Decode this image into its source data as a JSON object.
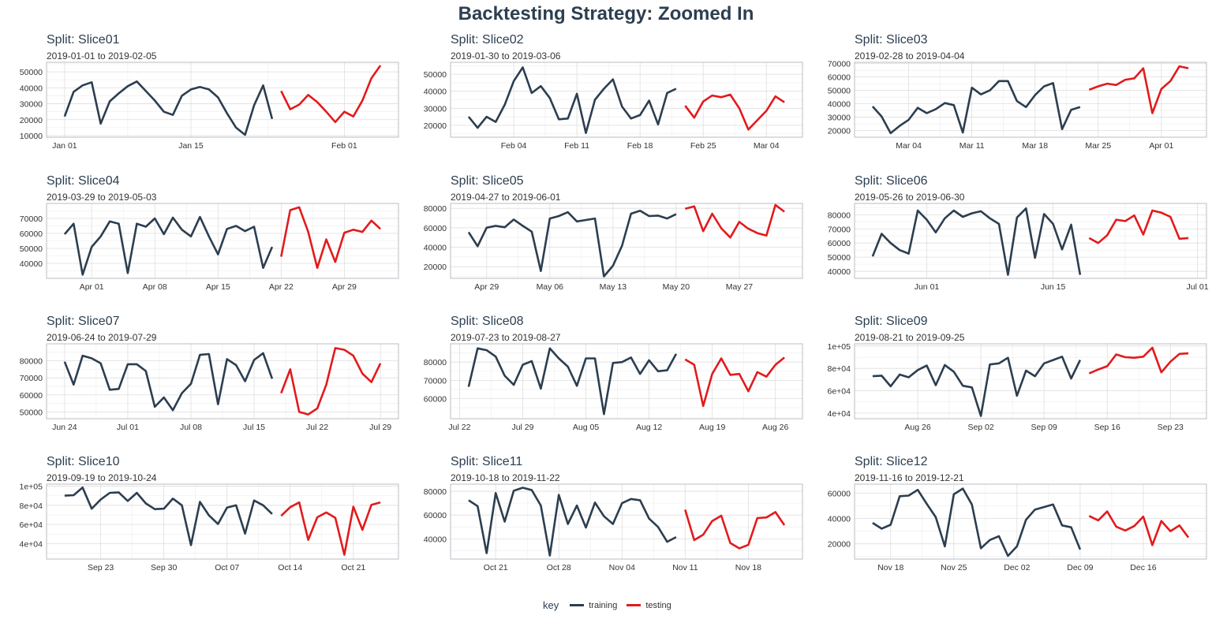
{
  "title": "Backtesting Strategy: Zoomed In",
  "colors": {
    "training": "#2c3e50",
    "testing": "#e31a1c"
  },
  "legend": {
    "title": "key",
    "items": [
      {
        "label": "training",
        "color": "#2c3e50"
      },
      {
        "label": "testing",
        "color": "#e31a1c"
      }
    ]
  },
  "chart_data": [
    {
      "type": "line",
      "title": "Split: Slice01",
      "subtitle": "2019-01-01 to 2019-02-05",
      "xlim": [
        "2018-12-30",
        "2019-02-07"
      ],
      "ylim": [
        9000,
        56000
      ],
      "yticks": [
        10000,
        20000,
        30000,
        40000,
        50000
      ],
      "ytick_labels": [
        "10000",
        "20000",
        "30000",
        "40000",
        "50000"
      ],
      "xticks": [
        "2019-01-01",
        "2019-01-15",
        "2019-02-01"
      ],
      "xtick_labels": [
        "Jan 01",
        "Jan 15",
        "Feb 01"
      ],
      "series": [
        {
          "name": "training",
          "start": "2019-01-01",
          "values": [
            22000,
            37500,
            41500,
            43500,
            17500,
            31500,
            36500,
            41000,
            44000,
            38000,
            32000,
            25000,
            23000,
            35000,
            39000,
            40500,
            39000,
            34000,
            24000,
            15000,
            10500,
            29000,
            41500,
            20500
          ]
        },
        {
          "name": "testing",
          "start": "2019-01-25",
          "values": [
            38000,
            26500,
            29500,
            35500,
            31000,
            25000,
            18500,
            25000,
            22000,
            32000,
            46000,
            54000
          ]
        }
      ]
    },
    {
      "type": "line",
      "title": "Split: Slice02",
      "subtitle": "2019-01-30 to 2019-03-06",
      "xlim": [
        "2019-01-28",
        "2019-03-08"
      ],
      "ylim": [
        13000,
        57000
      ],
      "yticks": [
        20000,
        30000,
        40000,
        50000
      ],
      "ytick_labels": [
        "20000",
        "30000",
        "40000",
        "50000"
      ],
      "xticks": [
        "2019-02-04",
        "2019-02-11",
        "2019-02-18",
        "2019-02-25",
        "2019-03-04"
      ],
      "xtick_labels": [
        "Feb 04",
        "Feb 11",
        "Feb 18",
        "Feb 25",
        "Mar 04"
      ],
      "series": [
        {
          "name": "training",
          "start": "2019-01-30",
          "values": [
            25000,
            18500,
            25000,
            22000,
            32000,
            46000,
            54000,
            39000,
            43000,
            36000,
            23500,
            24000,
            38500,
            15500,
            35000,
            41500,
            47000,
            31000,
            24000,
            26000,
            34500,
            20500,
            39000,
            41500
          ]
        },
        {
          "name": "testing",
          "start": "2019-02-23",
          "values": [
            31500,
            24500,
            34000,
            37500,
            36500,
            38000,
            30000,
            17500,
            23000,
            28500,
            37000,
            33500
          ]
        }
      ]
    },
    {
      "type": "line",
      "title": "Split: Slice03",
      "subtitle": "2019-02-28 to 2019-04-04",
      "xlim": [
        "2019-02-26",
        "2019-04-06"
      ],
      "ylim": [
        15000,
        71000
      ],
      "yticks": [
        20000,
        30000,
        40000,
        50000,
        60000,
        70000
      ],
      "ytick_labels": [
        "20000",
        "30000",
        "40000",
        "50000",
        "60000",
        "70000"
      ],
      "xticks": [
        "2019-03-04",
        "2019-03-11",
        "2019-03-18",
        "2019-03-25",
        "2019-04-01"
      ],
      "xtick_labels": [
        "Mar 04",
        "Mar 11",
        "Mar 18",
        "Mar 25",
        "Apr 01"
      ],
      "series": [
        {
          "name": "training",
          "start": "2019-02-28",
          "values": [
            38000,
            30500,
            18000,
            23500,
            28000,
            37000,
            33000,
            36000,
            40500,
            39000,
            18500,
            52000,
            47000,
            50000,
            57000,
            57000,
            42000,
            37500,
            46500,
            53000,
            55500,
            21000,
            35500,
            37500
          ]
        },
        {
          "name": "testing",
          "start": "2019-03-24",
          "values": [
            50500,
            53000,
            55000,
            54000,
            58000,
            59000,
            66500,
            33000,
            51000,
            57000,
            68000,
            66500
          ]
        }
      ]
    },
    {
      "type": "line",
      "title": "Split: Slice04",
      "subtitle": "2019-03-29 to 2019-05-03",
      "xlim": [
        "2019-03-27",
        "2019-05-05"
      ],
      "ylim": [
        30000,
        80000
      ],
      "yticks": [
        40000,
        50000,
        60000,
        70000
      ],
      "ytick_labels": [
        "40000",
        "50000",
        "60000",
        "70000"
      ],
      "xticks": [
        "2019-04-01",
        "2019-04-08",
        "2019-04-15",
        "2019-04-22",
        "2019-04-29"
      ],
      "xtick_labels": [
        "Apr 01",
        "Apr 08",
        "Apr 15",
        "Apr 22",
        "Apr 29"
      ],
      "series": [
        {
          "name": "training",
          "start": "2019-03-29",
          "values": [
            59500,
            66500,
            32500,
            51000,
            58000,
            68000,
            66500,
            33500,
            66500,
            64500,
            70000,
            59500,
            70500,
            62500,
            58000,
            71000,
            58000,
            46000,
            63000,
            65000,
            61500,
            64500,
            37000,
            51000
          ]
        },
        {
          "name": "testing",
          "start": "2019-04-22",
          "values": [
            44500,
            75500,
            77500,
            61000,
            37000,
            56000,
            41000,
            60500,
            62500,
            61000,
            68500,
            63000
          ]
        }
      ]
    },
    {
      "type": "line",
      "title": "Split: Slice05",
      "subtitle": "2019-04-27 to 2019-06-01",
      "xlim": [
        "2019-04-25",
        "2019-06-03"
      ],
      "ylim": [
        8000,
        85000
      ],
      "yticks": [
        20000,
        40000,
        60000,
        80000
      ],
      "ytick_labels": [
        "20000",
        "40000",
        "60000",
        "80000"
      ],
      "xticks": [
        "2019-04-29",
        "2019-05-06",
        "2019-05-13",
        "2019-05-20",
        "2019-05-27"
      ],
      "xtick_labels": [
        "Apr 29",
        "May 06",
        "May 13",
        "May 20",
        "May 27"
      ],
      "series": [
        {
          "name": "training",
          "start": "2019-04-27",
          "values": [
            55500,
            41000,
            60000,
            62000,
            60500,
            68500,
            62000,
            56000,
            15500,
            69500,
            72000,
            76000,
            66500,
            68000,
            69500,
            10000,
            21000,
            41500,
            74500,
            77500,
            72000,
            72500,
            69500,
            74000
          ]
        },
        {
          "name": "testing",
          "start": "2019-05-21",
          "values": [
            79500,
            82000,
            56500,
            74500,
            59500,
            50000,
            66000,
            59000,
            54500,
            52000,
            83500,
            76500
          ]
        }
      ]
    },
    {
      "type": "line",
      "title": "Split: Slice06",
      "subtitle": "2019-05-26 to 2019-06-30",
      "xlim": [
        "2019-05-24",
        "2019-07-02"
      ],
      "ylim": [
        35000,
        88000
      ],
      "yticks": [
        40000,
        50000,
        60000,
        70000,
        80000
      ],
      "ytick_labels": [
        "40000",
        "50000",
        "60000",
        "70000",
        "80000"
      ],
      "xticks": [
        "2019-06-01",
        "2019-06-15",
        "2019-07-01"
      ],
      "xtick_labels": [
        "Jun 01",
        "Jun 15",
        "Jul 01"
      ],
      "series": [
        {
          "name": "training",
          "start": "2019-05-26",
          "values": [
            50500,
            66500,
            60000,
            55000,
            52500,
            83000,
            76500,
            67500,
            77500,
            83000,
            78500,
            81000,
            82500,
            77500,
            73500,
            37500,
            78000,
            84500,
            49500,
            80500,
            73500,
            55500,
            73000,
            37500
          ]
        },
        {
          "name": "testing",
          "start": "2019-06-19",
          "values": [
            63500,
            60000,
            65500,
            76500,
            75500,
            79500,
            66000,
            83000,
            81500,
            78500,
            63000,
            63500
          ]
        }
      ]
    },
    {
      "type": "line",
      "title": "Split: Slice07",
      "subtitle": "2019-06-24 to 2019-07-29",
      "xlim": [
        "2019-06-22",
        "2019-07-31"
      ],
      "ylim": [
        46000,
        90000
      ],
      "yticks": [
        50000,
        60000,
        70000,
        80000
      ],
      "ytick_labels": [
        "50000",
        "60000",
        "70000",
        "80000"
      ],
      "xticks": [
        "2019-06-24",
        "2019-07-01",
        "2019-07-08",
        "2019-07-15",
        "2019-07-22",
        "2019-07-29"
      ],
      "xtick_labels": [
        "Jun 24",
        "Jul 01",
        "Jul 08",
        "Jul 15",
        "Jul 22",
        "Jul 29"
      ],
      "series": [
        {
          "name": "training",
          "start": "2019-06-24",
          "values": [
            79500,
            66000,
            83000,
            81500,
            78500,
            63000,
            63500,
            78000,
            78000,
            74000,
            53000,
            58500,
            51000,
            61000,
            66500,
            83500,
            84000,
            54500,
            81000,
            77500,
            68000,
            80500,
            84500,
            69500
          ]
        },
        {
          "name": "testing",
          "start": "2019-07-18",
          "values": [
            61000,
            75000,
            50000,
            48500,
            52000,
            66000,
            87500,
            86500,
            83000,
            72500,
            67500,
            78500
          ]
        }
      ]
    },
    {
      "type": "line",
      "title": "Split: Slice08",
      "subtitle": "2019-07-23 to 2019-08-27",
      "xlim": [
        "2019-07-21",
        "2019-08-29"
      ],
      "ylim": [
        49000,
        90000
      ],
      "yticks": [
        60000,
        70000,
        80000
      ],
      "ytick_labels": [
        "60000",
        "70000",
        "80000"
      ],
      "xticks": [
        "2019-07-22",
        "2019-07-29",
        "2019-08-05",
        "2019-08-12",
        "2019-08-19",
        "2019-08-26"
      ],
      "xtick_labels": [
        "Jul 22",
        "Jul 29",
        "Aug 05",
        "Aug 12",
        "Aug 19",
        "Aug 26"
      ],
      "series": [
        {
          "name": "training",
          "start": "2019-07-23",
          "values": [
            66500,
            87500,
            86500,
            83000,
            72500,
            67500,
            78500,
            80500,
            65500,
            87500,
            82000,
            77500,
            67000,
            82000,
            82000,
            51500,
            79500,
            80000,
            82500,
            73500,
            81000,
            75000,
            75500,
            84500
          ]
        },
        {
          "name": "testing",
          "start": "2019-08-16",
          "values": [
            81500,
            78500,
            56000,
            73500,
            82000,
            73000,
            73500,
            64000,
            74500,
            72000,
            78500,
            82500
          ]
        }
      ]
    },
    {
      "type": "line",
      "title": "Split: Slice09",
      "subtitle": "2019-08-21 to 2019-09-25",
      "xlim": [
        "2019-08-19",
        "2019-09-27"
      ],
      "ylim": [
        35000,
        102000
      ],
      "yticks": [
        40000,
        60000,
        80000,
        100000
      ],
      "ytick_labels": [
        "4e+04",
        "6e+04",
        "8e+04",
        "1e+05"
      ],
      "xticks": [
        "2019-08-26",
        "2019-09-02",
        "2019-09-09",
        "2019-09-16",
        "2019-09-23"
      ],
      "xtick_labels": [
        "Aug 26",
        "Sep 02",
        "Sep 09",
        "Sep 16",
        "Sep 23"
      ],
      "series": [
        {
          "name": "training",
          "start": "2019-08-21",
          "values": [
            73000,
            73500,
            64000,
            74500,
            72000,
            78500,
            82500,
            65000,
            83000,
            77000,
            64500,
            63000,
            37500,
            83500,
            84500,
            89500,
            55500,
            78000,
            73000,
            84500,
            87500,
            90500,
            71000,
            87500
          ]
        },
        {
          "name": "testing",
          "start": "2019-09-14",
          "values": [
            75500,
            79000,
            82000,
            92500,
            90000,
            89500,
            90500,
            98500,
            76500,
            86000,
            93000,
            93500
          ]
        }
      ]
    },
    {
      "type": "line",
      "title": "Split: Slice10",
      "subtitle": "2019-09-19 to 2019-10-24",
      "xlim": [
        "2019-09-17",
        "2019-10-26"
      ],
      "ylim": [
        24000,
        102000
      ],
      "yticks": [
        40000,
        60000,
        80000,
        100000
      ],
      "ytick_labels": [
        "4e+04",
        "6e+04",
        "8e+04",
        "1e+05"
      ],
      "xticks": [
        "2019-09-23",
        "2019-09-30",
        "2019-10-07",
        "2019-10-14",
        "2019-10-21"
      ],
      "xtick_labels": [
        "Sep 23",
        "Sep 30",
        "Oct 07",
        "Oct 14",
        "Oct 21"
      ],
      "series": [
        {
          "name": "training",
          "start": "2019-09-19",
          "values": [
            90000,
            90500,
            98500,
            76500,
            86000,
            93000,
            93500,
            84500,
            93000,
            82000,
            76000,
            76500,
            87000,
            80000,
            38500,
            83500,
            69500,
            60500,
            77500,
            80000,
            50500,
            85000,
            80000,
            71000
          ]
        },
        {
          "name": "testing",
          "start": "2019-10-13",
          "values": [
            69000,
            78000,
            83000,
            44000,
            67500,
            72500,
            67000,
            28500,
            78500,
            54500,
            80500,
            83000
          ]
        }
      ]
    },
    {
      "type": "line",
      "title": "Split: Slice11",
      "subtitle": "2019-10-18 to 2019-11-22",
      "xlim": [
        "2019-10-16",
        "2019-11-24"
      ],
      "ylim": [
        23000,
        86000
      ],
      "yticks": [
        40000,
        60000,
        80000
      ],
      "ytick_labels": [
        "40000",
        "60000",
        "80000"
      ],
      "xticks": [
        "2019-10-21",
        "2019-10-28",
        "2019-11-04",
        "2019-11-11",
        "2019-11-18"
      ],
      "xtick_labels": [
        "Oct 21",
        "Oct 28",
        "Nov 04",
        "Nov 11",
        "Nov 18"
      ],
      "series": [
        {
          "name": "training",
          "start": "2019-10-18",
          "values": [
            72500,
            67500,
            28000,
            78500,
            54500,
            80500,
            83000,
            81000,
            68000,
            26000,
            77000,
            52500,
            68000,
            49500,
            70500,
            59000,
            52500,
            70000,
            73500,
            72500,
            57000,
            50000,
            37500,
            41500
          ]
        },
        {
          "name": "testing",
          "start": "2019-11-11",
          "values": [
            64500,
            39000,
            43500,
            55000,
            59500,
            36500,
            32000,
            35000,
            57500,
            58000,
            62500,
            51500
          ]
        }
      ]
    },
    {
      "type": "line",
      "title": "Split: Slice12",
      "subtitle": "2019-11-16 to 2019-12-21",
      "xlim": [
        "2019-11-14",
        "2019-12-23"
      ],
      "ylim": [
        8000,
        67000
      ],
      "yticks": [
        20000,
        40000,
        60000
      ],
      "ytick_labels": [
        "20000",
        "40000",
        "60000"
      ],
      "xticks": [
        "2019-11-18",
        "2019-11-25",
        "2019-12-02",
        "2019-12-09",
        "2019-12-16"
      ],
      "xtick_labels": [
        "Nov 18",
        "Nov 25",
        "Dec 02",
        "Dec 09",
        "Dec 16"
      ],
      "series": [
        {
          "name": "training",
          "start": "2019-11-16",
          "values": [
            36500,
            32000,
            35000,
            57500,
            58000,
            62500,
            51500,
            41000,
            18000,
            59000,
            63500,
            51000,
            16500,
            23000,
            26000,
            10500,
            18000,
            39000,
            47000,
            49000,
            51000,
            34500,
            33000,
            15500
          ]
        },
        {
          "name": "testing",
          "start": "2019-12-10",
          "values": [
            42000,
            38500,
            45500,
            33500,
            30500,
            34000,
            41500,
            19000,
            38000,
            30000,
            34500,
            25000
          ]
        }
      ]
    }
  ]
}
